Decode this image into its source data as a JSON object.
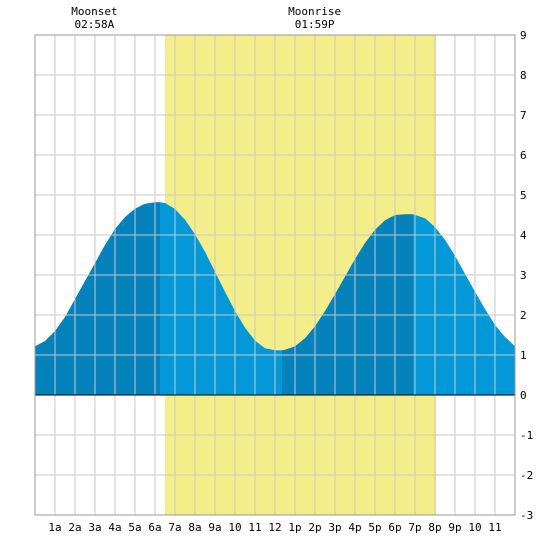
{
  "chart_data": {
    "type": "area",
    "title": "",
    "xlabel": "",
    "ylabel": "",
    "xlim": [
      0,
      24
    ],
    "ylim": [
      -3,
      9
    ],
    "y_ticks": [
      -3,
      -2,
      -1,
      0,
      1,
      2,
      3,
      4,
      5,
      6,
      7,
      8,
      9
    ],
    "y_tick_labels": [
      "-3",
      "-2",
      "-1",
      "0",
      "1",
      "2",
      "3",
      "4",
      "5",
      "6",
      "7",
      "8",
      "9"
    ],
    "x_ticks": [
      1,
      2,
      3,
      4,
      5,
      6,
      7,
      8,
      9,
      10,
      11,
      12,
      13,
      14,
      15,
      16,
      17,
      18,
      19,
      20,
      21,
      22,
      23
    ],
    "x_tick_labels": [
      "1a",
      "2a",
      "3a",
      "4a",
      "5a",
      "6a",
      "7a",
      "8a",
      "9a",
      "10",
      "11",
      "12",
      "1p",
      "2p",
      "3p",
      "4p",
      "5p",
      "6p",
      "7p",
      "8p",
      "9p",
      "10",
      "11"
    ],
    "grid": true,
    "moon_events": [
      {
        "label": "Moonset",
        "time": "02:58A",
        "hour": 2.97
      },
      {
        "label": "Moonrise",
        "time": "01:59P",
        "hour": 13.98
      }
    ],
    "daylight": {
      "start": 6.5,
      "end": 20.05
    },
    "tide_extremes": [
      {
        "hour": 6.25,
        "height": 4.82,
        "kind": "high"
      },
      {
        "hour": 12.35,
        "height": 1.12,
        "kind": "low"
      },
      {
        "hour": 18.9,
        "height": 4.52,
        "kind": "high"
      }
    ],
    "series": [
      {
        "x": [
          0,
          0.5,
          1,
          1.5,
          2,
          2.5,
          3,
          3.5,
          4,
          4.5,
          5,
          5.5,
          6,
          6.25,
          6.5,
          7,
          7.5,
          8,
          8.5,
          9,
          9.5,
          10,
          10.5,
          11,
          11.5,
          12,
          12.35,
          12.5,
          13,
          13.5,
          14,
          14.5,
          15,
          15.5,
          16,
          16.5,
          17,
          17.5,
          18,
          18.5,
          18.9,
          19.5,
          20,
          20.5,
          21,
          21.5,
          22,
          22.5,
          23,
          23.5,
          24
        ],
        "y": [
          1.22,
          1.35,
          1.6,
          1.95,
          2.4,
          2.85,
          3.3,
          3.75,
          4.15,
          4.45,
          4.66,
          4.78,
          4.82,
          4.82,
          4.8,
          4.65,
          4.38,
          4.02,
          3.58,
          3.08,
          2.58,
          2.1,
          1.68,
          1.36,
          1.17,
          1.12,
          1.12,
          1.13,
          1.22,
          1.42,
          1.72,
          2.1,
          2.52,
          2.96,
          3.4,
          3.8,
          4.13,
          4.37,
          4.5,
          4.52,
          4.52,
          4.42,
          4.2,
          3.88,
          3.48,
          3.03,
          2.58,
          2.15,
          1.75,
          1.45,
          1.22
        ]
      }
    ],
    "colors": {
      "daylight": "#f3ed8a",
      "tide_dark": "#0581bb",
      "tide_light": "#0399d9",
      "grid": "#c8c8c8"
    }
  }
}
